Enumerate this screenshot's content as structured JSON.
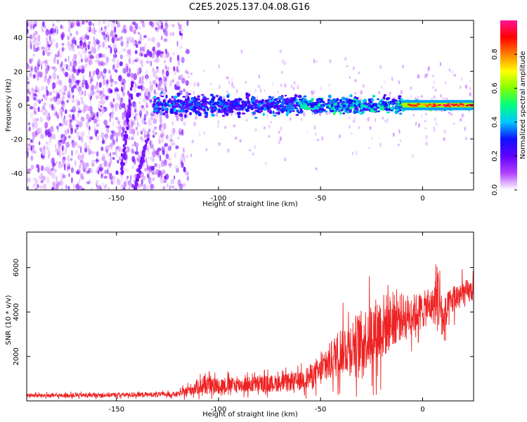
{
  "title": "C2E5.2025.137.04.08.G16",
  "colors": {
    "snr_line": "#ee2222",
    "frame": "#000000",
    "colormap": [
      "#ffffff",
      "#b040ff",
      "#6000ff",
      "#1010ff",
      "#00c8ff",
      "#00ff80",
      "#80ff00",
      "#ffff00",
      "#ff8000",
      "#ff0000",
      "#ff1493"
    ]
  },
  "chart_data": [
    {
      "type": "heatmap",
      "title": "",
      "xlabel": "Height of straight line (km)",
      "ylabel": "Frequency (Hz)",
      "xlim": [
        -194,
        25
      ],
      "ylim": [
        -50,
        50
      ],
      "xticks": [
        -150,
        -100,
        -50,
        0
      ],
      "xtick_labels": [
        "-150",
        "-100",
        "-50",
        "0"
      ],
      "yticks": [
        -40,
        -20,
        0,
        20,
        40
      ],
      "ytick_labels": [
        "-40",
        "-20",
        "0",
        "20",
        "40"
      ],
      "grid": false,
      "colorbar": {
        "label": "Normalized spectral amplitude",
        "range": [
          0.0,
          1.0
        ],
        "ticks": [
          0.0,
          0.2,
          0.4,
          0.6,
          0.8
        ],
        "tick_labels": [
          "0.0",
          "0.2",
          "0.4",
          "0.6",
          "0.8"
        ]
      },
      "ridge": {
        "center_frequency_hz": 0,
        "segments": [
          {
            "x_range": [
              -194,
              -115
            ],
            "amplitude": 0.12,
            "half_width_hz": 45
          },
          {
            "x_range": [
              -132,
              -60
            ],
            "amplitude": 0.35,
            "half_width_hz": 5
          },
          {
            "x_range": [
              -60,
              -10
            ],
            "amplitude": 0.45,
            "half_width_hz": 4
          },
          {
            "x_range": [
              -10,
              25
            ],
            "amplitude": 0.95,
            "half_width_hz": 2
          }
        ],
        "diagonal_streaks": [
          {
            "x": [
              -148,
              -142
            ],
            "y": [
              -45,
              15
            ]
          },
          {
            "x": [
              -141,
              -135
            ],
            "y": [
              -50,
              -20
            ]
          }
        ]
      }
    },
    {
      "type": "line",
      "title": "",
      "xlabel": "Height of straight line (km)",
      "ylabel": "SNR (10 * v/v)",
      "xlim": [
        -194,
        25
      ],
      "ylim": [
        0,
        7600
      ],
      "xticks": [
        -150,
        -100,
        -50,
        0
      ],
      "xtick_labels": [
        "-150",
        "-100",
        "-50",
        "0"
      ],
      "yticks": [
        2000,
        4000,
        6000
      ],
      "ytick_labels": [
        "2000",
        "4000",
        "6000"
      ],
      "grid": false,
      "series": [
        {
          "color": "#ee2222",
          "x": [
            -194,
            -180,
            -160,
            -140,
            -120,
            -115,
            -110,
            -100,
            -90,
            -80,
            -70,
            -60,
            -55,
            -50,
            -45,
            -40,
            -35,
            -30,
            -25,
            -20,
            -15,
            -10,
            -5,
            0,
            5,
            8,
            10,
            15,
            20,
            25
          ],
          "y": [
            250,
            240,
            260,
            280,
            300,
            450,
            650,
            700,
            720,
            750,
            800,
            900,
            1100,
            1300,
            1800,
            2300,
            2500,
            2700,
            3000,
            3300,
            3600,
            3800,
            3900,
            4100,
            4300,
            4800,
            3500,
            4600,
            4800,
            5000
          ],
          "noise": [
            120,
            130,
            140,
            150,
            160,
            350,
            500,
            550,
            500,
            550,
            550,
            600,
            800,
            900,
            1300,
            1600,
            1800,
            2000,
            2200,
            2300,
            1700,
            1500,
            1300,
            1200,
            1100,
            2700,
            1500,
            1000,
            900,
            700
          ]
        }
      ]
    }
  ]
}
